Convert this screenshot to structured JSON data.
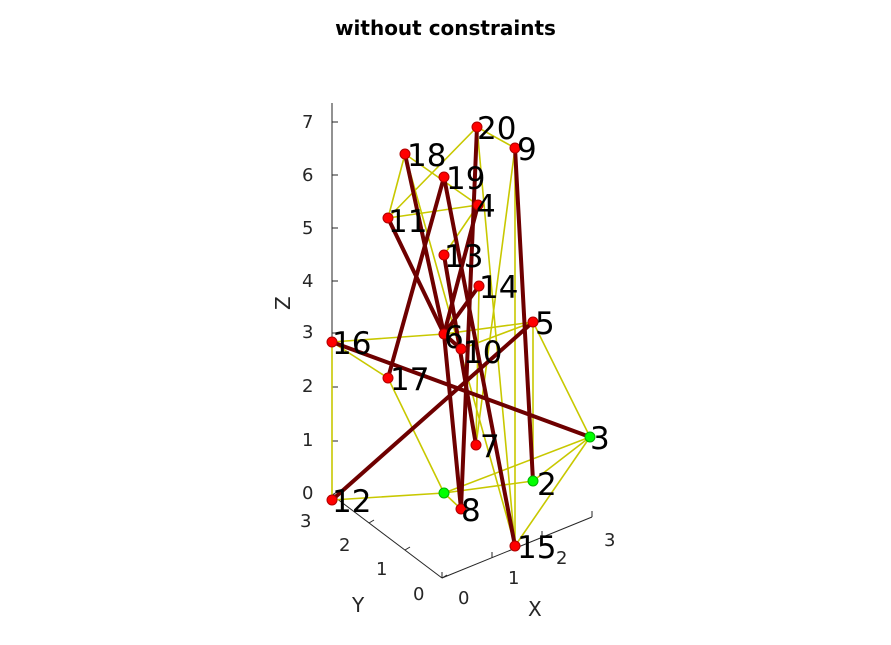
{
  "title": "without constraints",
  "axes": {
    "x_label": "X",
    "y_label": "Y",
    "z_label": "Z",
    "z_ticks": [
      "0",
      "1",
      "2",
      "3",
      "4",
      "5",
      "6",
      "7"
    ],
    "y_ticks": [
      "0",
      "1",
      "2",
      "3"
    ],
    "x_ticks": [
      "0",
      "1",
      "2",
      "3"
    ]
  },
  "colors": {
    "axis": "#262626",
    "weak_edge": "#c8c800",
    "strong_edge": "#6e0000",
    "node_red": "#ff0000",
    "node_green": "#00ff00"
  },
  "nodes": [
    {
      "id": "2",
      "color": "green"
    },
    {
      "id": "3",
      "color": "green"
    },
    {
      "id": "4",
      "color": "red"
    },
    {
      "id": "5",
      "color": "red"
    },
    {
      "id": "6",
      "color": "red"
    },
    {
      "id": "7",
      "color": "red"
    },
    {
      "id": "8",
      "color": "red"
    },
    {
      "id": "9",
      "color": "red"
    },
    {
      "id": "10",
      "color": "red"
    },
    {
      "id": "11",
      "color": "red"
    },
    {
      "id": "12",
      "color": "red"
    },
    {
      "id": "13",
      "color": "red"
    },
    {
      "id": "14",
      "color": "red"
    },
    {
      "id": "15",
      "color": "red"
    },
    {
      "id": "16",
      "color": "red"
    },
    {
      "id": "17",
      "color": "red"
    },
    {
      "id": "18",
      "color": "red"
    },
    {
      "id": "19",
      "color": "red"
    },
    {
      "id": "20",
      "color": "red"
    },
    {
      "id": "",
      "color": "green"
    }
  ],
  "edges_strong": [
    [
      "12",
      "5"
    ],
    [
      "16",
      "3"
    ],
    [
      "18",
      "6"
    ],
    [
      "11",
      "6"
    ],
    [
      "19",
      "17"
    ],
    [
      "20",
      "8"
    ],
    [
      "9",
      "2"
    ],
    [
      "13",
      "7"
    ],
    [
      "19",
      "15"
    ],
    [
      "4",
      "6"
    ],
    [
      "14",
      "6"
    ],
    [
      "10",
      "6"
    ],
    [
      "6",
      "8"
    ]
  ],
  "edges_weak": [
    [
      "18",
      "11"
    ],
    [
      "18",
      "4"
    ],
    [
      "18",
      "15"
    ],
    [
      "11",
      "4"
    ],
    [
      "11",
      "20"
    ],
    [
      "20",
      "9"
    ],
    [
      "20",
      "15"
    ],
    [
      "9",
      "15"
    ],
    [
      "9",
      "7"
    ],
    [
      "16",
      "12"
    ],
    [
      "16",
      "6"
    ],
    [
      "16",
      "17"
    ],
    [
      "12",
      "G"
    ],
    [
      "G",
      "8"
    ],
    [
      "G",
      "17"
    ],
    [
      "G",
      "2"
    ],
    [
      "2",
      "3"
    ],
    [
      "3",
      "5"
    ],
    [
      "3",
      "15"
    ],
    [
      "5",
      "6"
    ],
    [
      "5",
      "2"
    ],
    [
      "5",
      "10"
    ],
    [
      "4",
      "13"
    ],
    [
      "13",
      "10"
    ],
    [
      "14",
      "7"
    ],
    [
      "10",
      "7"
    ],
    [
      "G",
      "3"
    ]
  ]
}
